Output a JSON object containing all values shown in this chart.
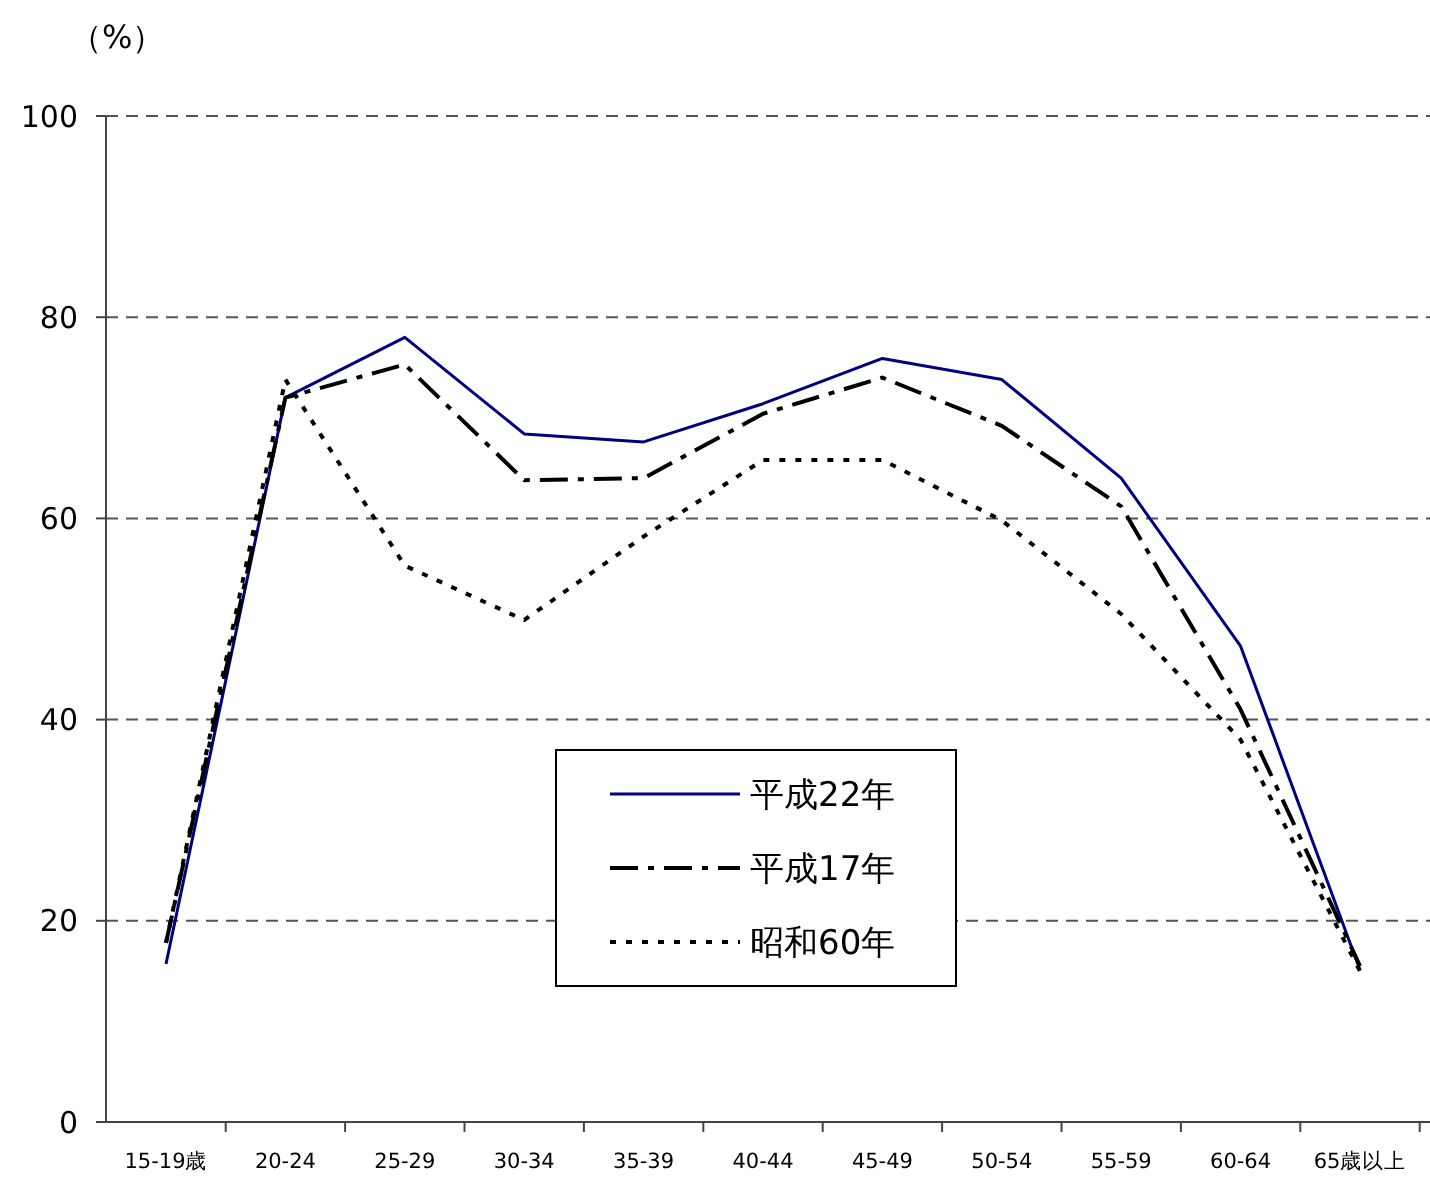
{
  "chart_data": {
    "type": "line",
    "ylabel": "（%）",
    "categories": [
      "15-19歳",
      "20-24",
      "25-29",
      "30-34",
      "35-39",
      "40-44",
      "45-49",
      "50-54",
      "55-59",
      "60-64",
      "65歳以上"
    ],
    "series": [
      {
        "name": "平成22年",
        "color": "#000080",
        "line_style": "solid",
        "values": [
          15.7,
          72,
          78,
          68.4,
          67.6,
          71.4,
          75.9,
          73.8,
          64,
          47.3,
          15.1
        ]
      },
      {
        "name": "平成17年",
        "color": "#000000",
        "line_style": "dashdot",
        "values": [
          17.8,
          72,
          75.3,
          63.8,
          64,
          70.4,
          74,
          69.2,
          61.2,
          41,
          15.5
        ]
      },
      {
        "name": "昭和60年",
        "color": "#000000",
        "line_style": "dotted",
        "values": [
          17.8,
          73.8,
          55.3,
          49.9,
          58.2,
          65.8,
          65.8,
          59.8,
          50.5,
          38,
          15
        ]
      }
    ],
    "ylim": [
      0,
      100
    ],
    "yticks": [
      0,
      20,
      40,
      60,
      80,
      100
    ],
    "grid": "y",
    "legend": "bottom",
    "marker": "none"
  }
}
